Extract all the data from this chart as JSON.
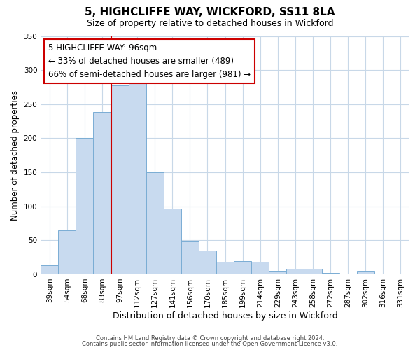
{
  "title": "5, HIGHCLIFFE WAY, WICKFORD, SS11 8LA",
  "subtitle": "Size of property relative to detached houses in Wickford",
  "xlabel": "Distribution of detached houses by size in Wickford",
  "ylabel": "Number of detached properties",
  "bar_color": "#c8daef",
  "bar_edge_color": "#7aadd4",
  "categories": [
    "39sqm",
    "54sqm",
    "68sqm",
    "83sqm",
    "97sqm",
    "112sqm",
    "127sqm",
    "141sqm",
    "156sqm",
    "170sqm",
    "185sqm",
    "199sqm",
    "214sqm",
    "229sqm",
    "243sqm",
    "258sqm",
    "272sqm",
    "287sqm",
    "302sqm",
    "316sqm",
    "331sqm"
  ],
  "values": [
    13,
    65,
    200,
    238,
    278,
    290,
    150,
    97,
    48,
    35,
    18,
    20,
    18,
    5,
    8,
    8,
    2,
    0,
    5,
    0,
    0
  ],
  "vline_index": 4,
  "vline_color": "#cc0000",
  "annotation_title": "5 HIGHCLIFFE WAY: 96sqm",
  "annotation_line1": "← 33% of detached houses are smaller (489)",
  "annotation_line2": "66% of semi-detached houses are larger (981) →",
  "annotation_box_color": "#ffffff",
  "annotation_box_edge": "#cc0000",
  "ylim": [
    0,
    350
  ],
  "footer1": "Contains HM Land Registry data © Crown copyright and database right 2024.",
  "footer2": "Contains public sector information licensed under the Open Government Licence v3.0.",
  "background_color": "#ffffff",
  "grid_color": "#c8d8e8"
}
